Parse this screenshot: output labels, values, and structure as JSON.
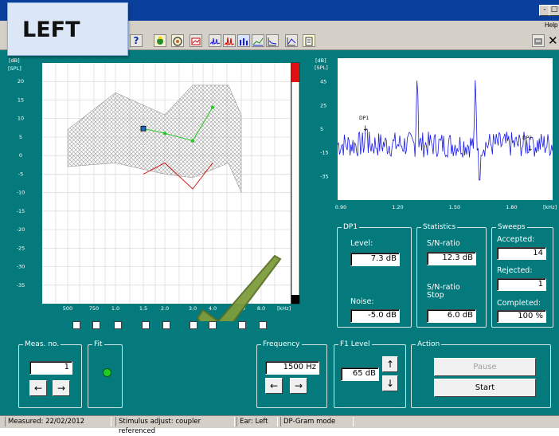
{
  "badge": {
    "text": "LEFT"
  },
  "menu": {
    "help": "Help"
  },
  "left_plot": {
    "y_unit_top": "[dB]",
    "y_unit": "[SPL]",
    "y_ticks": [
      "20",
      "15",
      "10",
      "5",
      "0",
      "-5",
      "-10",
      "-15",
      "-20",
      "-25",
      "-30",
      "-35"
    ],
    "x_ticks": [
      "500",
      "750",
      "1.0",
      "1.5",
      "2.0",
      "3.0",
      "4.0",
      "6.0",
      "8.0"
    ],
    "x_unit": "[kHz]"
  },
  "right_plot": {
    "y_unit_top": "[dB]",
    "y_unit": "[SPL]",
    "y_ticks": [
      "45",
      "25",
      "5",
      "-15",
      "-35"
    ],
    "x_ticks": [
      "0.90",
      "1.20",
      "1.50",
      "1.80"
    ],
    "x_unit": "[kHz]",
    "marker_dp1": "DP1",
    "marker_dp2": "DP2"
  },
  "dp1": {
    "title": "DP1",
    "level_label": "Level:",
    "level_value": "7.3 dB",
    "noise_label": "Noise:",
    "noise_value": "-5.0 dB"
  },
  "statistics": {
    "title": "Statistics",
    "sn_label": "S/N-ratio",
    "sn_value": "12.3 dB",
    "sn_stop_label": "S/N-ratio Stop",
    "sn_stop_value": "6.0 dB"
  },
  "sweeps": {
    "title": "Sweeps",
    "accepted_label": "Accepted:",
    "accepted_value": "14",
    "rejected_label": "Rejected:",
    "rejected_value": "1",
    "completed_label": "Completed:",
    "completed_value": "100 %"
  },
  "meas": {
    "title": "Meas. no.",
    "value": "1",
    "prev": "←",
    "next": "→"
  },
  "fit": {
    "title": "Fit",
    "color": "#22cc22"
  },
  "frequency": {
    "title": "Frequency",
    "value": "1500 Hz",
    "prev": "←",
    "next": "→"
  },
  "f1": {
    "title": "F1 Level",
    "value": "65 dB",
    "up": "↑",
    "down": "↓"
  },
  "action": {
    "title": "Action",
    "pause": "Pause",
    "start": "Start"
  },
  "status": {
    "measured": "Measured: 22/02/2012",
    "stimulus": "Stimulus adjust: coupler referenced",
    "ear": "Ear: Left",
    "mode": "DP-Gram mode"
  },
  "colors": {
    "main_bg": "#047a7c",
    "signal": "#d22020",
    "dp": "#22cc22",
    "spectrum": "#1a1ae6",
    "title_bar": "#0a3f9c"
  },
  "icons": [
    "help-icon",
    "probe-icon",
    "fit-icon",
    "save-icon",
    "spectrum-icon",
    "spectrum-icon",
    "bars-icon",
    "trend-icon",
    "graph-icon",
    "graph-icon",
    "checklist-icon"
  ],
  "dpgram": {
    "freq_khz": [
      1.5,
      2.0,
      3.0,
      4.0
    ],
    "dp_db": [
      7.3,
      6,
      4,
      13
    ],
    "noise_freq_khz": [
      1.5,
      2.0,
      3.0,
      4.0
    ],
    "noise_db": [
      -5,
      -2,
      -9,
      -2
    ],
    "norm_upper": [
      [
        0.5,
        7
      ],
      [
        1.0,
        17
      ],
      [
        2.0,
        11
      ],
      [
        3.0,
        19
      ],
      [
        5.0,
        19
      ],
      [
        6.0,
        11
      ]
    ],
    "norm_lower": [
      [
        0.5,
        -3
      ],
      [
        1.0,
        -2
      ],
      [
        2.0,
        -5
      ],
      [
        3.0,
        -6
      ],
      [
        5.0,
        -2
      ],
      [
        6.0,
        -10
      ]
    ]
  }
}
